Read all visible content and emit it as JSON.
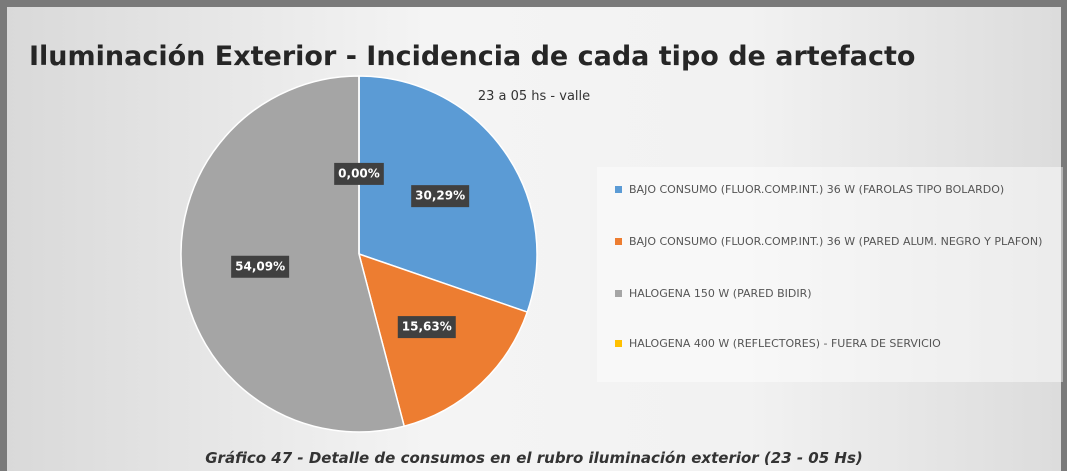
{
  "chart_data": {
    "type": "pie",
    "title": "Iluminación Exterior - Incidencia de cada tipo de artefacto",
    "subtitle": "23 a 05 hs - valle",
    "categories": [
      "BAJO CONSUMO (FLUOR.COMP.INT.) 36 W (FAROLAS TIPO BOLARDO)",
      "BAJO CONSUMO (FLUOR.COMP.INT.) 36 W (PARED ALUM. NEGRO Y PLAFON)",
      "HALOGENA 150 W (PARED BIDIR)",
      "HALOGENA 400 W (REFLECTORES) - FUERA DE SERVICIO"
    ],
    "values": [
      30.29,
      15.63,
      54.09,
      0.0
    ],
    "value_labels": [
      "30,29%",
      "15,63%",
      "54,09%",
      "0,00%"
    ],
    "colors": [
      "#5b9bd5",
      "#ed7d31",
      "#a5a5a5",
      "#ffc000"
    ],
    "legend": "right"
  },
  "caption": "Gráfico 47 - Detalle de consumos en el rubro iluminación exterior (23 - 05 Hs)"
}
